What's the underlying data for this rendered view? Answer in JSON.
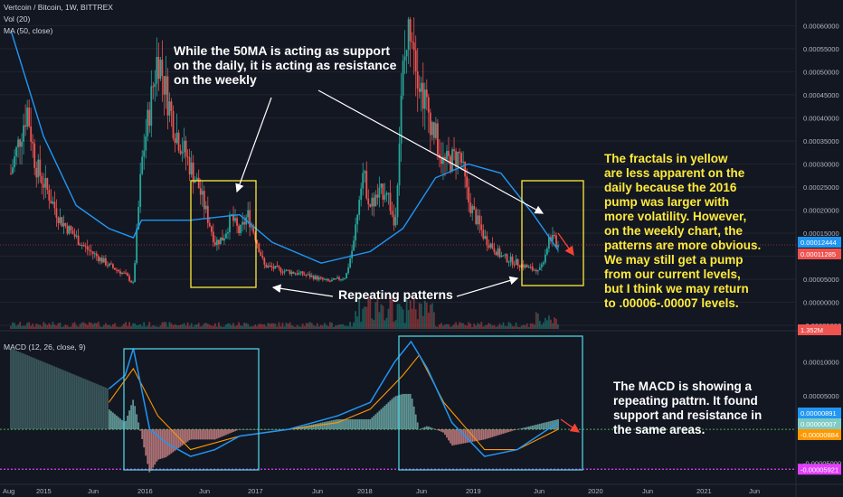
{
  "header": {
    "symbol_line": "Vertcoin / Bitcoin, 1W, BITTREX",
    "vol_line": "Vol (20)",
    "ma_line": "MA (50, close)",
    "macd_line": "MACD (12, 26, close, 9)"
  },
  "annotations": {
    "ma_note": "While the 50MA is acting as support\non the daily, it is acting as resistance\non the weekly",
    "repeat_note": "Repeating patterns",
    "fractal_note": "The fractals in yellow\nare less apparent on the\ndaily because the 2016\npump was larger with\nmore volatility. However,\non the weekly chart, the\npatterns are more obvious.\nWe may still get a pump\nfrom our current levels,\nbut I think we may return\nto .00006-.00007 levels.",
    "macd_note": "The MACD is showing a\nrepeating pattrn.  It found\nsupport and resistance in\nthe same areas."
  },
  "colors": {
    "background": "#131722",
    "up_candle": "#26a69a",
    "down_candle": "#ef5350",
    "ma_line": "#2196f3",
    "fractal_box": "#ffeb3b",
    "macd_box": "#4dd0e1",
    "macd_line": "#2196f3",
    "signal_line": "#ff9800",
    "zero_line": "#4caf50",
    "low_line": "#e040fb"
  },
  "chart_data": {
    "type": "line",
    "price_axis": {
      "ticks": [
        "0.00060000",
        "0.00055000",
        "0.00050000",
        "0.00045000",
        "0.00040000",
        "0.00035000",
        "0.00030000",
        "0.00025000",
        "0.00020000",
        "0.00015000",
        "0.00010000",
        "0.00005000",
        "0.00000000",
        "-0.00005000"
      ],
      "current_price": "0.00012444",
      "ma_value": "0.00011285",
      "ylim": [
        -5e-05,
        0.00064
      ]
    },
    "volume_tag": "1.352M",
    "macd_axis": {
      "ticks": [
        "0.00010000",
        "0.00005000",
        "-0.00005000"
      ],
      "macd_value": "0.00000891",
      "signal_value": "0.00000007",
      "hist_value": "-0.00000884",
      "low_value": "-0.00005921"
    },
    "time_axis": [
      "Aug",
      "2015",
      "Jun",
      "2016",
      "Jun",
      "2017",
      "Jun",
      "2018",
      "Jun",
      "2019",
      "Jun",
      "2020",
      "Jun",
      "2021",
      "Jun"
    ],
    "price_series": [
      {
        "t": 0,
        "p": 0.00028
      },
      {
        "t": 2,
        "p": 0.00042
      },
      {
        "t": 3,
        "p": 0.0003
      },
      {
        "t": 6,
        "p": 0.00018
      },
      {
        "t": 9,
        "p": 0.00012
      },
      {
        "t": 12,
        "p": 8e-05
      },
      {
        "t": 14,
        "p": 6e-05
      },
      {
        "t": 15,
        "p": 4e-05
      },
      {
        "t": 16,
        "p": 0.0003
      },
      {
        "t": 18,
        "p": 0.00054
      },
      {
        "t": 20,
        "p": 0.00038
      },
      {
        "t": 23,
        "p": 0.00025
      },
      {
        "t": 25,
        "p": 0.00013
      },
      {
        "t": 26,
        "p": 0.00014
      },
      {
        "t": 27,
        "p": 0.000185
      },
      {
        "t": 28,
        "p": 0.00015
      },
      {
        "t": 29,
        "p": 0.00019
      },
      {
        "t": 30,
        "p": 0.00014
      },
      {
        "t": 31,
        "p": 8e-05
      },
      {
        "t": 33,
        "p": 7e-05
      },
      {
        "t": 36,
        "p": 6e-05
      },
      {
        "t": 39,
        "p": 4.5e-05
      },
      {
        "t": 41,
        "p": 5.5e-05
      },
      {
        "t": 42,
        "p": 0.00013
      },
      {
        "t": 43,
        "p": 0.00029
      },
      {
        "t": 44,
        "p": 0.00021
      },
      {
        "t": 46,
        "p": 0.00025
      },
      {
        "t": 47,
        "p": 0.00016
      },
      {
        "t": 48,
        "p": 0.0005
      },
      {
        "t": 49,
        "p": 0.00062
      },
      {
        "t": 50,
        "p": 0.00048
      },
      {
        "t": 51,
        "p": 0.00042
      },
      {
        "t": 53,
        "p": 0.0003
      },
      {
        "t": 55,
        "p": 0.00032
      },
      {
        "t": 56,
        "p": 0.00022
      },
      {
        "t": 58,
        "p": 0.00014
      },
      {
        "t": 60,
        "p": 0.0001
      },
      {
        "t": 62,
        "p": 8.5e-05
      },
      {
        "t": 64,
        "p": 7e-05
      },
      {
        "t": 65,
        "p": 8e-05
      },
      {
        "t": 66,
        "p": 0.000145
      },
      {
        "t": 67,
        "p": 0.000124
      }
    ],
    "ma_series": [
      {
        "t": 0,
        "p": 0.00059
      },
      {
        "t": 4,
        "p": 0.00036
      },
      {
        "t": 8,
        "p": 0.00021
      },
      {
        "t": 12,
        "p": 0.00016
      },
      {
        "t": 15,
        "p": 0.00014
      },
      {
        "t": 16,
        "p": 0.000178
      },
      {
        "t": 22,
        "p": 0.000178
      },
      {
        "t": 28,
        "p": 0.00019
      },
      {
        "t": 32,
        "p": 0.00013
      },
      {
        "t": 38,
        "p": 8.5e-05
      },
      {
        "t": 44,
        "p": 0.00011
      },
      {
        "t": 48,
        "p": 0.00016
      },
      {
        "t": 52,
        "p": 0.00027
      },
      {
        "t": 56,
        "p": 0.0003
      },
      {
        "t": 60,
        "p": 0.00028
      },
      {
        "t": 64,
        "p": 0.00019
      },
      {
        "t": 67,
        "p": 0.000113
      }
    ],
    "macd_series": [
      {
        "t": 12,
        "v": 6e-05
      },
      {
        "t": 14,
        "v": 8e-05
      },
      {
        "t": 15,
        "v": 0.00012
      },
      {
        "t": 17,
        "v": 0.0
      },
      {
        "t": 19,
        "v": -2e-05
      },
      {
        "t": 22,
        "v": -4e-05
      },
      {
        "t": 25,
        "v": -3e-05
      },
      {
        "t": 28,
        "v": -1e-05
      },
      {
        "t": 34,
        "v": 0.0
      },
      {
        "t": 40,
        "v": 2e-05
      },
      {
        "t": 44,
        "v": 4e-05
      },
      {
        "t": 47,
        "v": 0.0001
      },
      {
        "t": 49,
        "v": 0.00013
      },
      {
        "t": 51,
        "v": 9e-05
      },
      {
        "t": 54,
        "v": 1e-05
      },
      {
        "t": 58,
        "v": -4e-05
      },
      {
        "t": 62,
        "v": -3e-05
      },
      {
        "t": 67,
        "v": 1e-05
      }
    ],
    "signal_series": [
      {
        "t": 12,
        "v": 4e-05
      },
      {
        "t": 15,
        "v": 9e-05
      },
      {
        "t": 18,
        "v": 2e-05
      },
      {
        "t": 22,
        "v": -3e-05
      },
      {
        "t": 28,
        "v": -1e-05
      },
      {
        "t": 34,
        "v": 0.0
      },
      {
        "t": 40,
        "v": 1e-05
      },
      {
        "t": 44,
        "v": 3e-05
      },
      {
        "t": 48,
        "v": 8e-05
      },
      {
        "t": 50,
        "v": 0.00011
      },
      {
        "t": 53,
        "v": 4e-05
      },
      {
        "t": 58,
        "v": -3e-05
      },
      {
        "t": 62,
        "v": -3e-05
      },
      {
        "t": 67,
        "v": 0.0
      }
    ]
  }
}
